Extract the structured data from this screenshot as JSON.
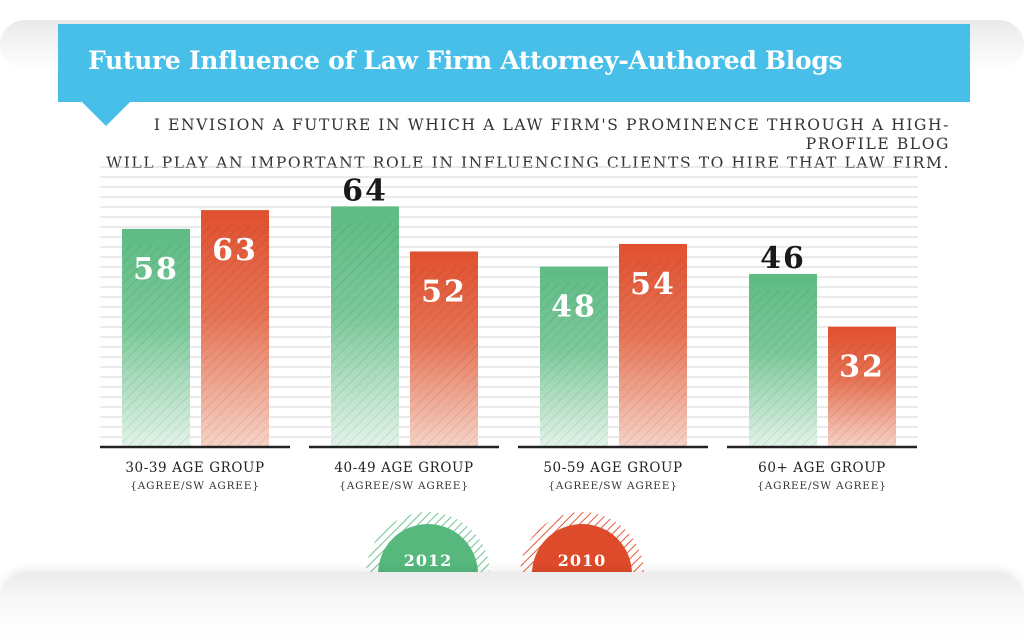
{
  "chart_data": {
    "type": "bar",
    "title": "Future Influence of Law Firm Attorney-Authored Blogs",
    "subtitle_lines": [
      "I envision a future in which a law firm's prominence through a high-profile blog",
      "will play an important role in influencing clients to hire that law firm."
    ],
    "categories": [
      "30-39 age group",
      "40-49 age group",
      "50-59 age group",
      "60+ age group"
    ],
    "category_sublabel": "{agree/sw agree}",
    "series": [
      {
        "name": "2012",
        "color": "#5dbb83",
        "values": [
          58,
          64,
          48,
          46
        ]
      },
      {
        "name": "2010",
        "color": "#e0502f",
        "values": [
          63,
          52,
          54,
          32
        ]
      }
    ],
    "ylim": [
      0,
      75
    ],
    "grid": true,
    "legend_position": "bottom-center"
  }
}
